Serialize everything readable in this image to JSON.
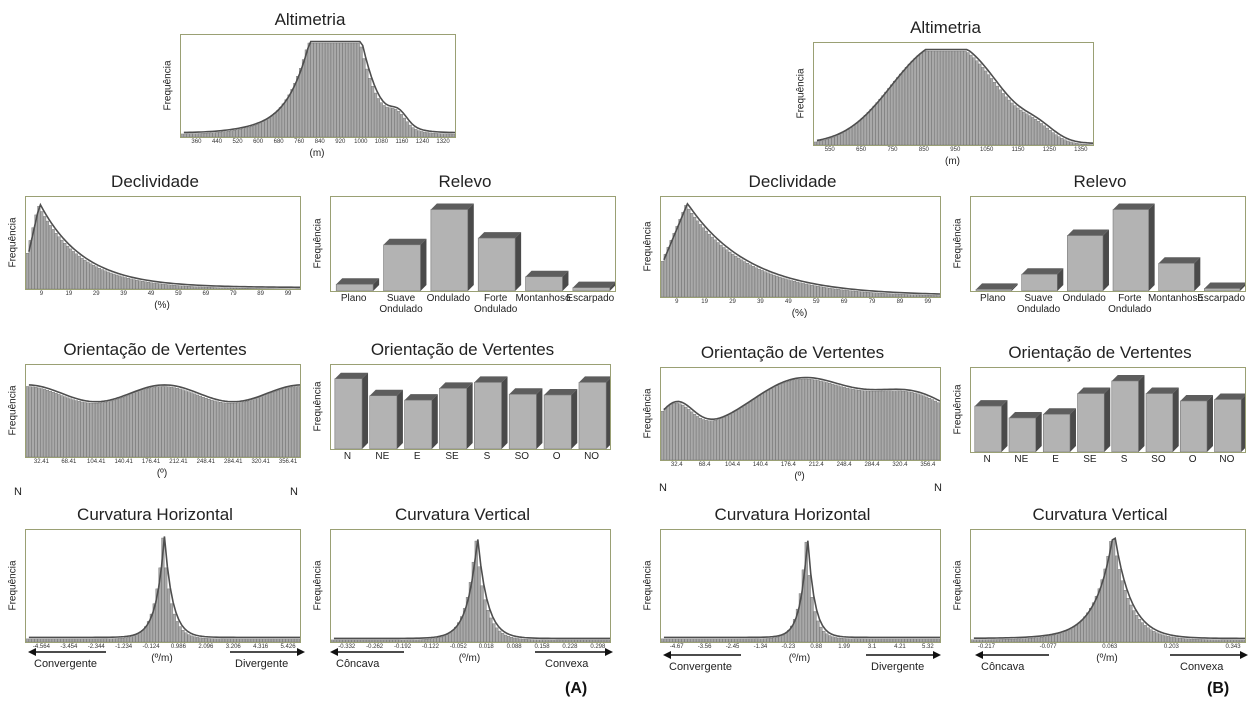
{
  "panel_labels": {
    "a": "(A)",
    "b": "(B)"
  },
  "arrows": {
    "convergente": "Convergente",
    "divergente": "Divergente",
    "concava": "Côncava",
    "convexa": "Convexa"
  },
  "orient_end_labels": {
    "start": "N",
    "end": "N"
  },
  "chart_data": [
    {
      "id": "a-alt",
      "panel": "A",
      "type": "bar",
      "title": "Altimetria",
      "ylabel": "Frequência",
      "xlabel": "(m)",
      "xticks": [
        "360",
        "440",
        "520",
        "600",
        "680",
        "760",
        "840",
        "920",
        "1000",
        "1080",
        "1160",
        "1240",
        "1320"
      ],
      "profile": {
        "kind": "hist",
        "base": 0.03,
        "peaks": [
          [
            0.57,
            1.0,
            0.065
          ],
          [
            0.52,
            0.55,
            0.09
          ],
          [
            0.48,
            0.2,
            0.16
          ],
          [
            0.79,
            0.12,
            0.03
          ],
          [
            0.65,
            0.25,
            0.1
          ]
        ]
      }
    },
    {
      "id": "b-alt",
      "panel": "B",
      "type": "bar",
      "title": "Altimetria",
      "ylabel": "Frequência",
      "xlabel": "(m)",
      "xticks": [
        "550",
        "650",
        "750",
        "850",
        "950",
        "1050",
        "1150",
        "1250",
        "1350"
      ],
      "profile": {
        "kind": "hist",
        "base": 0.0,
        "peaks": [
          [
            0.42,
            0.93,
            0.16
          ],
          [
            0.6,
            0.35,
            0.12
          ],
          [
            0.8,
            0.12,
            0.06
          ]
        ]
      }
    },
    {
      "id": "a-decl",
      "panel": "A",
      "type": "bar",
      "title": "Declividade",
      "ylabel": "Frequência",
      "xlabel": "(%)",
      "xticks": [
        "9",
        "19",
        "29",
        "39",
        "49",
        "59",
        "69",
        "79",
        "89",
        "99"
      ],
      "profile": {
        "kind": "decay",
        "rise": 0.045,
        "tail": 0.16
      }
    },
    {
      "id": "b-decl",
      "panel": "B",
      "type": "bar",
      "title": "Declividade",
      "ylabel": "Frequência",
      "xlabel": "(%)",
      "xticks": [
        "9",
        "19",
        "29",
        "39",
        "49",
        "59",
        "69",
        "79",
        "89",
        "99"
      ],
      "profile": {
        "kind": "decay",
        "rise": 0.09,
        "tail": 0.22
      }
    },
    {
      "id": "a-relevo",
      "panel": "A",
      "type": "bar",
      "title": "Relevo",
      "ylabel": "Frequência",
      "categories": [
        "Plano",
        "Suave Ondulado",
        "Ondulado",
        "Forte Ondulado",
        "Montanhoso",
        "Escarpado"
      ],
      "values": [
        8,
        55,
        97,
        63,
        17,
        4
      ],
      "ylim": [
        0,
        100
      ]
    },
    {
      "id": "b-relevo",
      "panel": "B",
      "type": "bar",
      "title": "Relevo",
      "ylabel": "Frequência",
      "categories": [
        "Plano",
        "Suave Ondulado",
        "Ondulado",
        "Forte Ondulado",
        "Montanhoso",
        "Escarpado"
      ],
      "values": [
        2,
        20,
        66,
        97,
        33,
        3
      ],
      "ylim": [
        0,
        100
      ]
    },
    {
      "id": "a-orient-h",
      "panel": "A",
      "type": "bar",
      "title": "Orientação de Vertentes",
      "ylabel": "Frequência",
      "xlabel": "(º)",
      "xticks": [
        "32.41",
        "68.41",
        "104.41",
        "140.41",
        "176.41",
        "212.41",
        "248.41",
        "284.41",
        "320.41",
        "356.41"
      ],
      "profile": {
        "kind": "wave",
        "base": 0.74,
        "amp": 0.1,
        "cycles": 2,
        "phase": 0.0
      }
    },
    {
      "id": "b-orient-h",
      "panel": "B",
      "type": "bar",
      "title": "Orientação de Vertentes",
      "ylabel": "Frequência",
      "xlabel": "(º)",
      "xticks": [
        "32.4",
        "68.4",
        "104.4",
        "140.4",
        "176.4",
        "212.4",
        "248.4",
        "284.4",
        "320.4",
        "356.4"
      ],
      "profile": {
        "kind": "hist",
        "base": 0.3,
        "peaks": [
          [
            0.5,
            0.65,
            0.18
          ],
          [
            0.9,
            0.45,
            0.15
          ],
          [
            0.05,
            0.35,
            0.06
          ]
        ]
      }
    },
    {
      "id": "a-orient-c",
      "panel": "A",
      "type": "bar",
      "title": "Orientação de Vertentes",
      "ylabel": "Frequência",
      "categories": [
        "N",
        "NE",
        "E",
        "SE",
        "S",
        "SO",
        "O",
        "NO"
      ],
      "values": [
        95,
        72,
        66,
        82,
        90,
        74,
        73,
        90
      ],
      "ylim": [
        0,
        100
      ]
    },
    {
      "id": "b-orient-c",
      "panel": "B",
      "type": "bar",
      "title": "Orientação de Vertentes",
      "ylabel": "Frequência",
      "categories": [
        "N",
        "NE",
        "E",
        "SE",
        "S",
        "SO",
        "O",
        "NO"
      ],
      "values": [
        62,
        46,
        51,
        79,
        96,
        79,
        69,
        71
      ],
      "ylim": [
        0,
        100
      ]
    },
    {
      "id": "a-ch",
      "panel": "A",
      "type": "bar",
      "title": "Curvatura Horizontal",
      "ylabel": "Frequência",
      "xlabel": "(º/m)",
      "xticks": [
        "-4.564",
        "-3.454",
        "-2.344",
        "-1.234",
        "-0.124",
        "0.986",
        "2.096",
        "3.206",
        "4.316",
        "5.426"
      ],
      "profile": {
        "kind": "peak",
        "center": 0.5,
        "width": 0.03,
        "base": 0.03
      }
    },
    {
      "id": "a-cv",
      "panel": "A",
      "type": "bar",
      "title": "Curvatura Vertical",
      "ylabel": "Frequência",
      "xlabel": "(º/m)",
      "xticks": [
        "-0.332",
        "-0.262",
        "-0.192",
        "-0.122",
        "-0.052",
        "0.018",
        "0.088",
        "0.158",
        "0.228",
        "0.298"
      ],
      "profile": {
        "kind": "peak",
        "center": 0.52,
        "width": 0.035,
        "base": 0.02
      }
    },
    {
      "id": "b-ch",
      "panel": "B",
      "type": "bar",
      "title": "Curvatura Horizontal",
      "ylabel": "Frequência",
      "xlabel": "(º/m)",
      "xticks": [
        "-4.67",
        "-3.56",
        "-2.45",
        "-1.34",
        "-0.23",
        "0.88",
        "1.99",
        "3.1",
        "4.21",
        "5.32"
      ],
      "profile": {
        "kind": "peak",
        "center": 0.52,
        "width": 0.025,
        "base": 0.03
      }
    },
    {
      "id": "b-cv",
      "panel": "B",
      "type": "bar",
      "title": "Curvatura Vertical",
      "ylabel": "Frequência",
      "xlabel": "(º/m)",
      "xticks": [
        "-0.217",
        "-0.077",
        "0.063",
        "0.203",
        "0.343"
      ],
      "profile": {
        "kind": "peak",
        "center": 0.52,
        "width": 0.06,
        "base": 0.02,
        "leftTail": 0.12
      }
    }
  ]
}
